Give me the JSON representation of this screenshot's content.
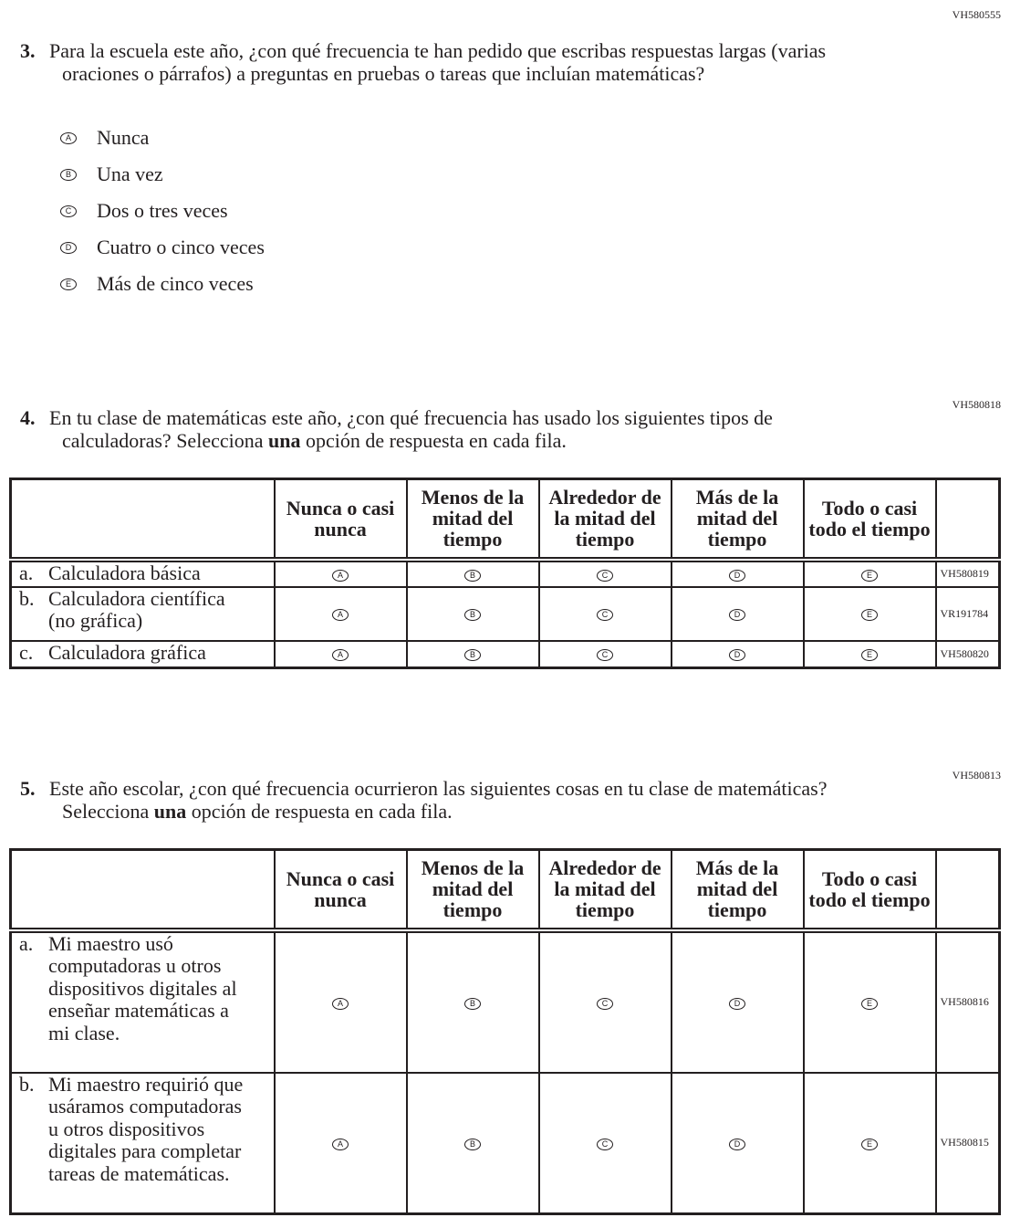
{
  "q3": {
    "code": "VH580555",
    "number": "3.",
    "text": "Para la escuela este año, ¿con qué frecuencia te han pedido que escribas respuestas largas (varias oraciones o párrafos) a preguntas en pruebas o tareas que incluían matemáticas?",
    "options": [
      {
        "letter": "A",
        "label": "Nunca"
      },
      {
        "letter": "B",
        "label": "Una vez"
      },
      {
        "letter": "C",
        "label": "Dos o tres veces"
      },
      {
        "letter": "D",
        "label": "Cuatro o cinco veces"
      },
      {
        "letter": "E",
        "label": "Más de cinco veces"
      }
    ]
  },
  "q4": {
    "code": "VH580818",
    "number": "4.",
    "text_before": "En tu clase de matemáticas este año, ¿con qué frecuencia has usado los siguientes tipos de calculadoras? Selecciona ",
    "text_bold": "una",
    "text_after": " opción de respuesta en cada fila.",
    "columns": [
      "Nunca o casi nunca",
      "Menos de la mitad del tiempo",
      "Alrededor de la mitad del tiempo",
      "Más de la mitad del tiempo",
      "Todo o casi todo el tiempo"
    ],
    "rows": [
      {
        "letter": "a.",
        "label": "Calculadora básica",
        "code": "VH580819"
      },
      {
        "letter": "b.",
        "label": "Calculadora científica (no gráfica)",
        "code": "VR191784"
      },
      {
        "letter": "c.",
        "label": "Calculadora gráfica",
        "code": "VH580820"
      }
    ]
  },
  "q5": {
    "code": "VH580813",
    "number": "5.",
    "text_before": "Este año escolar, ¿con qué frecuencia ocurrieron las siguientes cosas en tu clase de matemáticas? Selecciona ",
    "text_bold": "una",
    "text_after": " opción de respuesta en cada fila.",
    "columns": [
      "Nunca o casi nunca",
      "Menos de la mitad del tiempo",
      "Alrededor de la mitad del tiempo",
      "Más de la mitad del tiempo",
      "Todo o casi todo el tiempo"
    ],
    "rows": [
      {
        "letter": "a.",
        "label": "Mi maestro usó computadoras u otros dispositivos digitales al enseñar matemáticas a mi clase.",
        "code": "VH580816"
      },
      {
        "letter": "b.",
        "label": "Mi maestro requirió que usáramos computadoras u otros dispositivos digitales para completar tareas de matemáticas.",
        "code": "VH580815"
      }
    ]
  },
  "bubble_letters": [
    "A",
    "B",
    "C",
    "D",
    "E"
  ]
}
